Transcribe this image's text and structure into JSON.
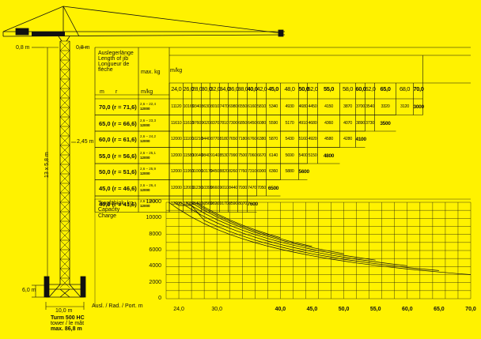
{
  "crane": {
    "top_label": "0,8 m",
    "top_label_right": "0,8 m",
    "mast_label": "13 x 5,8 m",
    "side_label": "2,45 m",
    "base_label": "6,0 m",
    "width_label": "10,0 m",
    "caption": [
      "Turm 500 HC",
      "tower / le mât",
      "max. 86,8 m"
    ]
  },
  "table": {
    "header_lines": [
      "Auslegerlänge",
      "Length of jib",
      "Longueur de",
      "flèche"
    ],
    "max_kg": "max. kg",
    "m_label": "m",
    "r_label": "r",
    "m_kg_left": "m/kg",
    "m_kg_top": "m/kg",
    "radii": [
      {
        "v": "24,0",
        "bold": false
      },
      {
        "v": "26,0",
        "bold": false
      },
      {
        "v": "28,0",
        "bold": false
      },
      {
        "v": "30,0",
        "bold": false
      },
      {
        "v": "32,0",
        "bold": false
      },
      {
        "v": "34,0",
        "bold": false
      },
      {
        "v": "36,0",
        "bold": false
      },
      {
        "v": "38,0",
        "bold": false
      },
      {
        "v": "40,0",
        "bold": true
      },
      {
        "v": "42,0",
        "bold": false
      },
      {
        "v": "45,0",
        "bold": true
      },
      {
        "v": "48,0",
        "bold": false
      },
      {
        "v": "50,0",
        "bold": true
      },
      {
        "v": "52,0",
        "bold": false
      },
      {
        "v": "55,0",
        "bold": true
      },
      {
        "v": "58,0",
        "bold": false
      },
      {
        "v": "60,0",
        "bold": true
      },
      {
        "v": "62,0",
        "bold": false
      },
      {
        "v": "65,0",
        "bold": true
      },
      {
        "v": "68,0",
        "bold": false
      },
      {
        "v": "70,0",
        "bold": true
      }
    ],
    "rows": [
      {
        "label": "70,0  (r = 71,6)",
        "range": "2,6 – 22,4",
        "max": "12000",
        "values": [
          "11120",
          "10160",
          "9340",
          "8630",
          "8010",
          "7470",
          "6980",
          "6550",
          "6160",
          "5810",
          "5340",
          "4930",
          "4680",
          "4450",
          "4150",
          "3870",
          "3700",
          "3540",
          "3320",
          "3120",
          "3000"
        ]
      },
      {
        "label": "65,0  (r = 66,6)",
        "range": "2,6 – 23,3",
        "max": "12000",
        "values": [
          "11610",
          "11610",
          "9760",
          "9020",
          "8370",
          "7810",
          "7300",
          "6850",
          "6450",
          "6080",
          "5590",
          "5170",
          "4910",
          "4680",
          "4360",
          "4070",
          "3890",
          "3730",
          "3500"
        ]
      },
      {
        "label": "60,0  (r = 61,6)",
        "range": "2,6 – 24,2",
        "max": "12000",
        "values": [
          "12000",
          "11100",
          "10210",
          "9440",
          "8770",
          "8180",
          "7650",
          "7180",
          "6760",
          "6380",
          "5870",
          "5430",
          "5160",
          "4920",
          "4580",
          "4280",
          "4100"
        ]
      },
      {
        "label": "55,0  (r = 56,6)",
        "range": "2,6 – 25,1",
        "max": "12000",
        "values": [
          "12000",
          "11580",
          "10640",
          "9840",
          "9140",
          "8530",
          "7990",
          "7500",
          "7060",
          "6670",
          "6140",
          "5690",
          "5400",
          "5150",
          "4800"
        ]
      },
      {
        "label": "50,0  (r = 51,6)",
        "range": "2,6 – 25,9",
        "max": "12000",
        "values": [
          "12000",
          "11950",
          "11000",
          "10170",
          "9450",
          "8820",
          "8260",
          "7760",
          "7310",
          "6900",
          "6360",
          "5880",
          "5600"
        ]
      },
      {
        "label": "45,0  (r = 46,6)",
        "range": "2,6 – 26,4",
        "max": "12000",
        "values": [
          "12000",
          "12000",
          "11230",
          "10390",
          "9660",
          "9010",
          "8440",
          "7930",
          "7470",
          "7050",
          "6500"
        ]
      },
      {
        "label": "40,0  (r = 41,6)",
        "range": "2,6 – 26,8",
        "max": "12000",
        "values": [
          "12000",
          "12000",
          "11410",
          "10560",
          "9820",
          "9170",
          "8590",
          "8070",
          "7600"
        ]
      }
    ]
  },
  "chart_data": {
    "type": "line",
    "title_lines": [
      "Tragfähigk. kg",
      "Capacity",
      "Charge"
    ],
    "xlabel": "Ausl. / Rad. / Port. m",
    "ylim": [
      0,
      12000
    ],
    "xlim": [
      22,
      70
    ],
    "yticks": [
      "12000",
      "10000",
      "8000",
      "6000",
      "4000",
      "2000",
      "0"
    ],
    "xticks": [
      {
        "v": "24,0",
        "bold": false
      },
      {
        "v": "30,0",
        "bold": false
      },
      {
        "v": "40,0",
        "bold": true
      },
      {
        "v": "45,0",
        "bold": true
      },
      {
        "v": "50,0",
        "bold": true
      },
      {
        "v": "55,0",
        "bold": true
      },
      {
        "v": "60,0",
        "bold": true
      },
      {
        "v": "65,0",
        "bold": true
      },
      {
        "v": "70,0",
        "bold": true
      }
    ],
    "grid": true,
    "series": [
      {
        "x": [
          22.4,
          24,
          26,
          28,
          30,
          32,
          34,
          36,
          38,
          40,
          42,
          45,
          48,
          50,
          52,
          55,
          58,
          60,
          62,
          65,
          68,
          70
        ],
        "values": [
          12000,
          11120,
          10160,
          9340,
          8630,
          8010,
          7470,
          6980,
          6550,
          6160,
          5810,
          5340,
          4930,
          4680,
          4450,
          4150,
          3870,
          3700,
          3540,
          3320,
          3120,
          3000
        ]
      },
      {
        "x": [
          23.3,
          24,
          26,
          28,
          30,
          32,
          34,
          36,
          38,
          40,
          42,
          45,
          48,
          50,
          52,
          55,
          58,
          60,
          62,
          65
        ],
        "values": [
          12000,
          11610,
          11610,
          9760,
          9020,
          8370,
          7810,
          7300,
          6850,
          6450,
          6080,
          5590,
          5170,
          4910,
          4680,
          4360,
          4070,
          3890,
          3730,
          3500
        ]
      },
      {
        "x": [
          24.2,
          26,
          28,
          30,
          32,
          34,
          36,
          38,
          40,
          42,
          45,
          48,
          50,
          52,
          55,
          58,
          60
        ],
        "values": [
          12000,
          11100,
          10210,
          9440,
          8770,
          8180,
          7650,
          7180,
          6760,
          6380,
          5870,
          5430,
          5160,
          4920,
          4580,
          4280,
          4100
        ]
      },
      {
        "x": [
          25.1,
          26,
          28,
          30,
          32,
          34,
          36,
          38,
          40,
          42,
          45,
          48,
          50,
          52,
          55
        ],
        "values": [
          12000,
          11580,
          10640,
          9840,
          9140,
          8530,
          7990,
          7500,
          7060,
          6670,
          6140,
          5690,
          5400,
          5150,
          4800
        ]
      },
      {
        "x": [
          25.9,
          26,
          28,
          30,
          32,
          34,
          36,
          38,
          40,
          42,
          45,
          48,
          50
        ],
        "values": [
          12000,
          11950,
          11000,
          10170,
          9450,
          8820,
          8260,
          7760,
          7310,
          6900,
          6360,
          5880,
          5600
        ]
      },
      {
        "x": [
          26.4,
          28,
          30,
          32,
          34,
          36,
          38,
          40,
          42,
          45
        ],
        "values": [
          12000,
          11230,
          10390,
          9660,
          9010,
          8440,
          7930,
          7470,
          7050,
          6500
        ]
      },
      {
        "x": [
          26.8,
          28,
          30,
          32,
          34,
          36,
          38,
          40
        ],
        "values": [
          12000,
          11410,
          10560,
          9820,
          9170,
          8590,
          8070,
          7600
        ]
      }
    ]
  }
}
